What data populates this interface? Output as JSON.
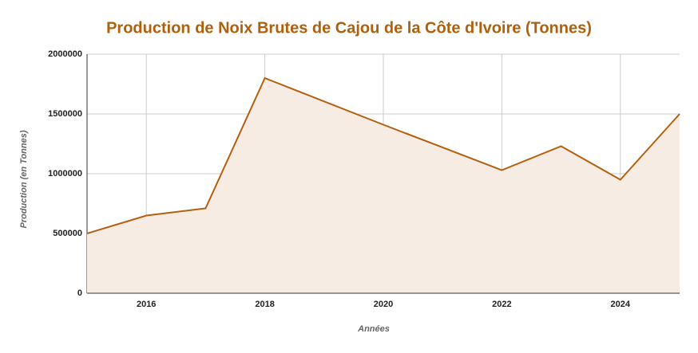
{
  "chart_data": {
    "type": "area",
    "title": "Production de Noix Brutes de Cajou de la Côte d'Ivoire (Tonnes)",
    "x_label": "Années",
    "y_label": "Production (en Tonnes)",
    "x": [
      2015,
      2016,
      2017,
      2018,
      2020,
      2022,
      2023,
      2024,
      2025
    ],
    "series": [
      {
        "name": "Production",
        "color": "#b5600f",
        "fill": "#f7ece3",
        "values": [
          500000,
          650000,
          710000,
          1800000,
          1410000,
          1030000,
          1230000,
          950000,
          1500000
        ]
      }
    ],
    "xlim": [
      2015,
      2025
    ],
    "xticks": [
      2016,
      2018,
      2020,
      2022,
      2024
    ],
    "ylim": [
      0,
      2000000
    ],
    "yticks": [
      0,
      500000,
      1000000,
      1500000,
      2000000
    ],
    "grid": true
  }
}
